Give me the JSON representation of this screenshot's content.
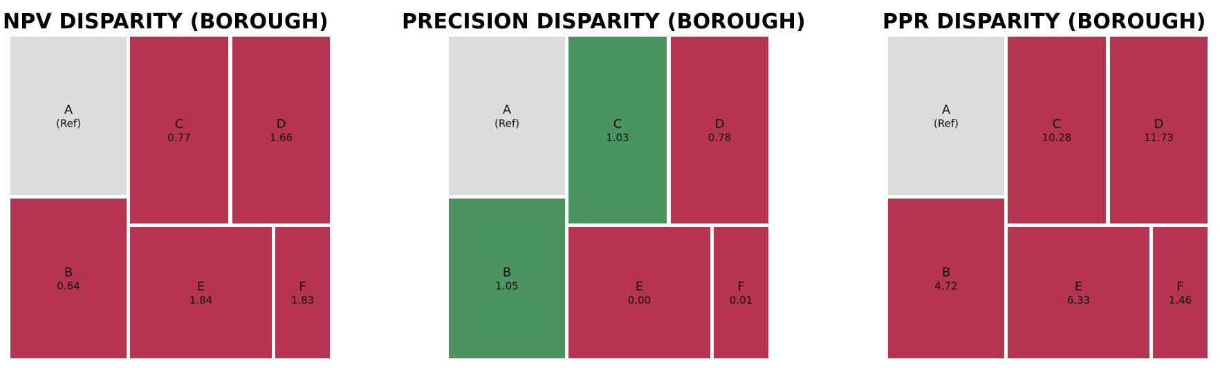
{
  "colors": {
    "reference": "#dcdcdc",
    "worse": "#b5344f",
    "better": "#4a9460",
    "border": "#ffffff",
    "text": "#111111"
  },
  "chart_data": [
    {
      "type": "treemap",
      "title": "NPV DISPARITY (BOROUGH)",
      "tiles": [
        {
          "label": "A",
          "value": "(Ref)",
          "status": "reference"
        },
        {
          "label": "B",
          "value": "0.64",
          "status": "worse"
        },
        {
          "label": "C",
          "value": "0.77",
          "status": "worse"
        },
        {
          "label": "D",
          "value": "1.66",
          "status": "worse"
        },
        {
          "label": "E",
          "value": "1.84",
          "status": "worse"
        },
        {
          "label": "F",
          "value": "1.83",
          "status": "worse"
        }
      ]
    },
    {
      "type": "treemap",
      "title": "PRECISION DISPARITY (BOROUGH)",
      "tiles": [
        {
          "label": "A",
          "value": "(Ref)",
          "status": "reference"
        },
        {
          "label": "B",
          "value": "1.05",
          "status": "better"
        },
        {
          "label": "C",
          "value": "1.03",
          "status": "better"
        },
        {
          "label": "D",
          "value": "0.78",
          "status": "worse"
        },
        {
          "label": "E",
          "value": "0.00",
          "status": "worse"
        },
        {
          "label": "F",
          "value": "0.01",
          "status": "worse"
        }
      ]
    },
    {
      "type": "treemap",
      "title": "PPR DISPARITY (BOROUGH)",
      "tiles": [
        {
          "label": "A",
          "value": "(Ref)",
          "status": "reference"
        },
        {
          "label": "B",
          "value": "4.72",
          "status": "worse"
        },
        {
          "label": "C",
          "value": "10.28",
          "status": "worse"
        },
        {
          "label": "D",
          "value": "11.73",
          "status": "worse"
        },
        {
          "label": "E",
          "value": "6.33",
          "status": "worse"
        },
        {
          "label": "F",
          "value": "1.46",
          "status": "worse"
        }
      ]
    }
  ]
}
